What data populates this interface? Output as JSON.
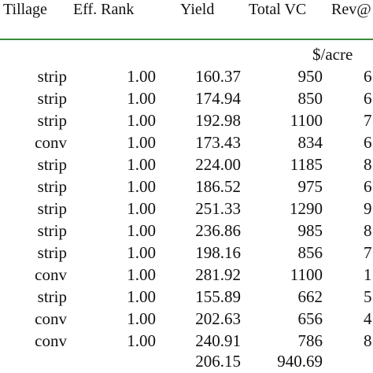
{
  "table": {
    "headers": {
      "tillage": "Tillage",
      "eff_rank": "Eff. Rank",
      "yield": "Yield",
      "total_vc": "Total VC",
      "rev": "Rev@"
    },
    "units": {
      "total_vc": "$/acre"
    },
    "rows": [
      {
        "tillage": "strip",
        "eff_rank": "1.00",
        "yield": "160.37",
        "total_vc": "950",
        "rev": "6"
      },
      {
        "tillage": "strip",
        "eff_rank": "1.00",
        "yield": "174.94",
        "total_vc": "850",
        "rev": "6"
      },
      {
        "tillage": "strip",
        "eff_rank": "1.00",
        "yield": "192.98",
        "total_vc": "1100",
        "rev": "7"
      },
      {
        "tillage": "conv",
        "eff_rank": "1.00",
        "yield": "173.43",
        "total_vc": "834",
        "rev": "6"
      },
      {
        "tillage": "strip",
        "eff_rank": "1.00",
        "yield": "224.00",
        "total_vc": "1185",
        "rev": "8"
      },
      {
        "tillage": "strip",
        "eff_rank": "1.00",
        "yield": "186.52",
        "total_vc": "975",
        "rev": "6"
      },
      {
        "tillage": "strip",
        "eff_rank": "1.00",
        "yield": "251.33",
        "total_vc": "1290",
        "rev": "9"
      },
      {
        "tillage": "strip",
        "eff_rank": "1.00",
        "yield": "236.86",
        "total_vc": "985",
        "rev": "8"
      },
      {
        "tillage": "strip",
        "eff_rank": "1.00",
        "yield": "198.16",
        "total_vc": "856",
        "rev": "7"
      },
      {
        "tillage": "conv",
        "eff_rank": "1.00",
        "yield": "281.92",
        "total_vc": "1100",
        "rev": "1"
      },
      {
        "tillage": "strip",
        "eff_rank": "1.00",
        "yield": "155.89",
        "total_vc": "662",
        "rev": "5"
      },
      {
        "tillage": "conv",
        "eff_rank": "1.00",
        "yield": "202.63",
        "total_vc": "656",
        "rev": "4"
      },
      {
        "tillage": "conv",
        "eff_rank": "1.00",
        "yield": "240.91",
        "total_vc": "786",
        "rev": "8"
      }
    ],
    "averages": {
      "yield": "206.15",
      "total_vc": "940.69"
    }
  }
}
